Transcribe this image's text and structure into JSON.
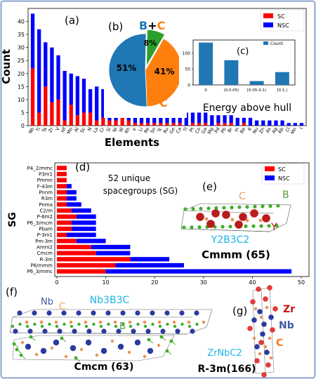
{
  "panel_labels": {
    "a": "(a)",
    "b": "(b)",
    "c": "(c)",
    "d": "(d)",
    "e": "(e)",
    "f": "(f)",
    "g": "(g)"
  },
  "chart_data": [
    {
      "id": "a",
      "type": "bar",
      "stacked": true,
      "xlabel": "Elements",
      "ylabel": "Count",
      "ylim": [
        0,
        45
      ],
      "yticks": [
        0,
        5,
        10,
        15,
        20,
        25,
        30,
        35,
        40
      ],
      "legend_placement": "top-right",
      "categories": [
        "Nb",
        "Ti",
        "Ta",
        "Zr",
        "V",
        "Hf",
        "Mo",
        "Al",
        "Sc",
        "N",
        "La",
        "Cr",
        "Si",
        "Ni",
        "W",
        "Rh",
        "Ir",
        "Li",
        "Re",
        "Sn",
        "Tc",
        "Ru",
        "Ge",
        "Ca",
        "Tl",
        "Pt",
        "Co",
        "Ga",
        "Mg",
        "Pd",
        "Pb",
        "Br",
        "In",
        "Be",
        "K",
        "Nu",
        "Zn",
        "As",
        "Ag",
        "Rb",
        "Cl",
        "Mn",
        "I"
      ],
      "series": [
        {
          "name": "SC",
          "color": "#ff0000",
          "values": [
            22,
            5,
            15,
            9,
            10,
            2,
            8,
            4,
            5,
            5,
            2,
            3,
            2,
            2,
            3,
            2,
            1,
            1,
            1,
            1,
            1,
            1,
            1,
            1,
            0,
            1,
            1,
            1,
            0,
            1,
            1,
            1,
            0,
            1,
            0,
            0,
            0,
            0,
            0,
            0,
            0,
            0,
            0
          ]
        },
        {
          "name": "NSC",
          "color": "#0000ff",
          "values": [
            21,
            32,
            17,
            21,
            17,
            19,
            12,
            15,
            13,
            9,
            13,
            11,
            12,
            11,
            9,
            9,
            8,
            7,
            6,
            6,
            6,
            5,
            5,
            5,
            5,
            4,
            4,
            4,
            4,
            3,
            3,
            3,
            3,
            2,
            3,
            2,
            2,
            2,
            2,
            2,
            1,
            1,
            1
          ]
        }
      ]
    },
    {
      "id": "b",
      "type": "pie",
      "slices": [
        {
          "label": "B",
          "value": 51,
          "text": "51%",
          "color": "#1f77b4"
        },
        {
          "label": "C",
          "value": 41,
          "text": "41%",
          "color": "#ff7f0e"
        },
        {
          "label": "B+C",
          "value": 8,
          "text": "8%",
          "color": "#2ca02c"
        }
      ],
      "label_B": "B",
      "label_C": "C",
      "label_BC_b": "B",
      "label_BC_plus": "+",
      "label_BC_c": "C"
    },
    {
      "id": "c",
      "type": "bar",
      "xlabel": "Energy above hull",
      "legend_placement": "top-right",
      "categories": [
        "0",
        "(0,0.05)",
        "[0.05-0.1)",
        "[0.1,)"
      ],
      "yticks": [
        0,
        50,
        100
      ],
      "ylim": [
        0,
        140
      ],
      "series": [
        {
          "name": "Count",
          "color": "#1f77b4",
          "values": [
            132,
            77,
            12,
            40
          ]
        }
      ]
    },
    {
      "id": "d",
      "type": "bar",
      "orientation": "horizontal",
      "stacked": true,
      "ylabel": "SG",
      "xlim": [
        0,
        50
      ],
      "xticks": [
        0,
        10,
        20,
        30,
        40,
        50
      ],
      "legend_placement": "top-right",
      "annotation": "52 unique spacegroups (SG)",
      "annotation_line1": "52 unique",
      "annotation_line2": "spacegroups (SG)",
      "categories": [
        "P4_2/mmc",
        "P3m1",
        "Pmmn",
        "F-43m",
        "Pnnm",
        "R3m",
        "Pnma",
        "C2/m",
        "P-6m2",
        "P6_3/mcm",
        "Pbam",
        "P-3m1",
        "Pm-3m",
        "Amm2",
        "Cmcm",
        "R-3m",
        "P6/mmm",
        "P6_3/mmc"
      ],
      "series": [
        {
          "name": "SC",
          "color": "#ff0000",
          "values": [
            2,
            2,
            2,
            2,
            2,
            2,
            2,
            3,
            4,
            3,
            3,
            2,
            4,
            7,
            8,
            15,
            12,
            10
          ]
        },
        {
          "name": "NSC",
          "color": "#0000ff",
          "values": [
            0,
            0,
            0,
            1,
            2,
            2,
            3,
            4,
            4,
            5,
            5,
            6,
            6,
            8,
            7,
            8,
            14,
            38
          ]
        }
      ]
    }
  ],
  "structures": {
    "e": {
      "formula": "Y2B3C2",
      "sg": "Cmmm (65)",
      "atom_C": "C",
      "atom_B": "B",
      "atom_Y": "Y"
    },
    "f": {
      "formula": "Nb3B3C",
      "sg": "Cmcm (63)",
      "atom_Nb": "Nb",
      "atom_C": "C",
      "atom_B": "B"
    },
    "g": {
      "formula": "ZrNbC2",
      "sg": "R-3m(166)",
      "atom_Zr": "Zr",
      "atom_Nb": "Nb",
      "atom_C": "C"
    }
  },
  "colors": {
    "sc": "#ff0000",
    "nsc": "#0000ff",
    "formula": "#1eb4e6",
    "blue_atom": "#2b3a9e",
    "red_atom": "#b81c1c",
    "orange_atom": "#e8935a",
    "green_atom": "#3fae2a",
    "label_blue": "#3b5ba5",
    "label_orange": "#f0a060",
    "label_green": "#5a9a3a",
    "label_red": "#c81010"
  }
}
